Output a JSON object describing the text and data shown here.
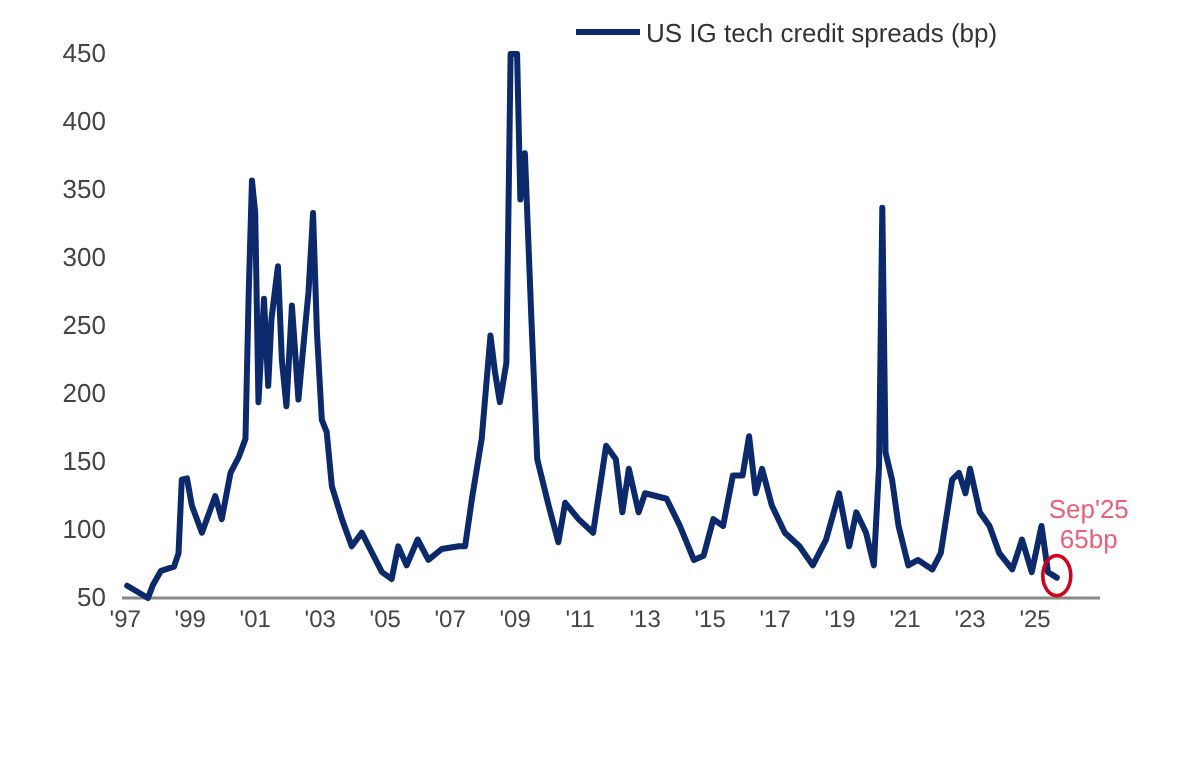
{
  "chart_data": {
    "type": "line",
    "x": [
      1997.06,
      1997.7,
      1997.86,
      1998.1,
      1998.5,
      1998.64,
      1998.74,
      1998.9,
      1999.05,
      1999.36,
      1999.77,
      1999.97,
      2000.24,
      2000.5,
      2000.7,
      2000.8,
      2000.9,
      2001.0,
      2001.1,
      2001.27,
      2001.4,
      2001.5,
      2001.7,
      2001.82,
      2001.96,
      2002.13,
      2002.33,
      2002.54,
      2002.64,
      2002.78,
      2002.9,
      2003.05,
      2003.2,
      2003.36,
      2003.67,
      2003.97,
      2004.28,
      2004.6,
      2004.9,
      2005.2,
      2005.4,
      2005.66,
      2006.0,
      2006.33,
      2006.74,
      2007.26,
      2007.46,
      2007.67,
      2007.97,
      2008.24,
      2008.38,
      2008.53,
      2008.73,
      2008.86,
      2009.06,
      2009.16,
      2009.3,
      2009.5,
      2009.68,
      2010.03,
      2010.33,
      2010.54,
      2010.95,
      2011.4,
      2011.8,
      2012.1,
      2012.3,
      2012.5,
      2012.8,
      2013.0,
      2013.66,
      2014.07,
      2014.5,
      2014.8,
      2015.1,
      2015.4,
      2015.7,
      2016.0,
      2016.2,
      2016.4,
      2016.6,
      2016.9,
      2017.3,
      2017.75,
      2018.16,
      2018.57,
      2018.97,
      2019.28,
      2019.5,
      2019.8,
      2020.04,
      2020.2,
      2020.3,
      2020.4,
      2020.6,
      2020.8,
      2021.1,
      2021.4,
      2021.84,
      2022.1,
      2022.45,
      2022.66,
      2022.86,
      2023.0,
      2023.3,
      2023.6,
      2023.9,
      2024.3,
      2024.6,
      2024.9,
      2025.2,
      2025.4,
      2025.67
    ],
    "series": [
      {
        "name": "US IG tech credit spreads (bp)",
        "color": "#0c2a6b",
        "values": [
          59,
          50,
          60,
          70,
          73,
          83,
          137,
          138,
          118,
          98,
          125,
          108,
          142,
          154,
          167,
          275,
          357,
          333,
          194,
          270,
          206,
          255,
          294,
          225,
          191,
          265,
          196,
          250,
          275,
          333,
          245,
          181,
          172,
          132,
          108,
          88,
          98,
          83,
          69,
          64,
          88,
          74,
          93,
          78,
          86,
          88,
          88,
          123,
          167,
          243,
          216,
          194,
          223,
          450,
          450,
          343,
          377,
          255,
          152,
          118,
          91,
          120,
          108,
          98,
          162,
          152,
          113,
          145,
          113,
          127,
          123,
          103,
          78,
          81,
          108,
          103,
          140,
          140,
          169,
          127,
          145,
          118,
          98,
          88,
          74,
          93,
          127,
          88,
          113,
          98,
          74,
          147,
          337,
          157,
          137,
          103,
          74,
          78,
          71,
          83,
          137,
          142,
          127,
          145,
          113,
          103,
          83,
          71,
          93,
          69,
          103,
          69,
          65
        ]
      }
    ],
    "xlim": [
      1996.9,
      2027.0
    ],
    "xticks": [
      {
        "value": 1997,
        "label": "'97"
      },
      {
        "value": 1999,
        "label": "'99"
      },
      {
        "value": 2001,
        "label": "'01"
      },
      {
        "value": 2003,
        "label": "'03"
      },
      {
        "value": 2005,
        "label": "'05"
      },
      {
        "value": 2007,
        "label": "'07"
      },
      {
        "value": 2009,
        "label": "'09"
      },
      {
        "value": 2011,
        "label": "'11"
      },
      {
        "value": 2013,
        "label": "'13"
      },
      {
        "value": 2015,
        "label": "'15"
      },
      {
        "value": 2017,
        "label": "'17"
      },
      {
        "value": 2019,
        "label": "'19"
      },
      {
        "value": 2021,
        "label": "'21"
      },
      {
        "value": 2023,
        "label": "'23"
      },
      {
        "value": 2025,
        "label": "'25"
      }
    ],
    "ylim": [
      50,
      450
    ],
    "yticks": [
      50,
      100,
      150,
      200,
      250,
      300,
      350,
      400,
      450
    ],
    "annotations": [
      {
        "text": "Sep'25\n65bp",
        "x": 2025.67,
        "y": 65
      }
    ],
    "legend": "top right",
    "grid": false,
    "marker": "none"
  }
}
